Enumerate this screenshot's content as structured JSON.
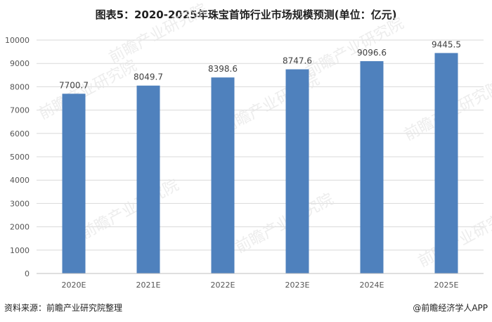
{
  "title": "图表5：2020-2025年珠宝首饰行业市场规模预测(单位：亿元)",
  "chart_data": {
    "type": "bar",
    "title": "图表5：2020-2025年珠宝首饰行业市场规模预测(单位：亿元)",
    "categories": [
      "2020E",
      "2021E",
      "2022E",
      "2023E",
      "2024E",
      "2025E"
    ],
    "values": [
      7700.7,
      8049.7,
      8398.6,
      8747.6,
      9096.6,
      9445.5
    ],
    "data_labels": [
      "7700.7",
      "8049.7",
      "8398.6",
      "8747.6",
      "9096.6",
      "9445.5"
    ],
    "ylim": [
      0,
      10000
    ],
    "yticks": [
      0,
      1000,
      2000,
      3000,
      4000,
      5000,
      6000,
      7000,
      8000,
      9000,
      10000
    ],
    "grid": true,
    "bar_color": "#4f81bd",
    "xlabel": "",
    "ylabel": ""
  },
  "footer": {
    "source": "资料来源：前瞻产业研究院整理",
    "brand": "@前瞻经济学人APP"
  },
  "watermark": "前瞻产业研究院"
}
